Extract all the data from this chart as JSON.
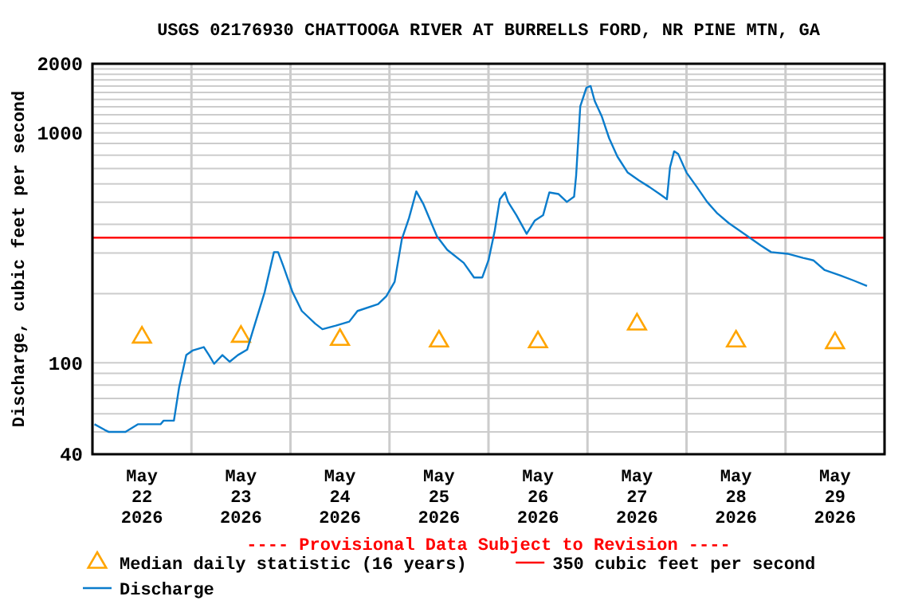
{
  "chart_data": {
    "type": "line",
    "title": "USGS 02176930 CHATTOOGA RIVER AT BURRELLS FORD, NR PINE MTN, GA",
    "ylabel": "Discharge, cubic feet per second",
    "annotations": [
      "---- Provisional Data Subject to Revision ----"
    ],
    "log": "y",
    "grid": true,
    "legend": "bottom",
    "xlim": [
      "2026-05-22T00:00",
      "2026-05-30T00:00"
    ],
    "xticks": [
      {
        "value": "2026-05-22T00:00",
        "label": null
      },
      {
        "value": "2026-05-22T12:00",
        "label": "May 22 2026"
      },
      {
        "value": "2026-05-23T00:00",
        "label": null
      },
      {
        "value": "2026-05-23T12:00",
        "label": "May 23 2026"
      },
      {
        "value": "2026-05-24T00:00",
        "label": null
      },
      {
        "value": "2026-05-24T12:00",
        "label": "May 24 2026"
      },
      {
        "value": "2026-05-25T00:00",
        "label": null
      },
      {
        "value": "2026-05-25T12:00",
        "label": "May 25 2026"
      },
      {
        "value": "2026-05-26T00:00",
        "label": null
      },
      {
        "value": "2026-05-26T12:00",
        "label": "May 26 2026"
      },
      {
        "value": "2026-05-27T00:00",
        "label": null
      },
      {
        "value": "2026-05-27T12:00",
        "label": "May 27 2026"
      },
      {
        "value": "2026-05-28T00:00",
        "label": null
      },
      {
        "value": "2026-05-28T12:00",
        "label": "May 28 2026"
      },
      {
        "value": "2026-05-29T00:00",
        "label": null
      },
      {
        "value": "2026-05-29T12:00",
        "label": "May 29 2026"
      },
      {
        "value": "2026-05-30T00:00",
        "label": null
      }
    ],
    "ylim": [
      40,
      2000
    ],
    "yticks": [
      40,
      {
        "value": 50,
        "label": null
      },
      {
        "value": 60,
        "label": null
      },
      {
        "value": 70,
        "label": null
      },
      {
        "value": 80,
        "label": null
      },
      {
        "value": 90,
        "label": null
      },
      100,
      {
        "value": 200,
        "label": null
      },
      {
        "value": 300,
        "label": null
      },
      {
        "value": 400,
        "label": null
      },
      {
        "value": 500,
        "label": null
      },
      {
        "value": 600,
        "label": null
      },
      {
        "value": 700,
        "label": null
      },
      {
        "value": 800,
        "label": null
      },
      {
        "value": 900,
        "label": null
      },
      1000,
      {
        "value": 1100,
        "label": null
      },
      {
        "value": 1200,
        "label": null
      },
      {
        "value": 1300,
        "label": null
      },
      {
        "value": 1400,
        "label": null
      },
      {
        "value": 1500,
        "label": null
      },
      {
        "value": 1600,
        "label": null
      },
      {
        "value": 1700,
        "label": null
      },
      {
        "value": 1800,
        "label": null
      },
      {
        "value": 1900,
        "label": null
      },
      2000
    ],
    "ref_lines": [
      {
        "axis": "y",
        "value": 350,
        "label": "350 cubic feet per second",
        "color": "#ff0000"
      }
    ],
    "series": [
      {
        "name": "Median daily statistic (16 years)",
        "type": "scatter",
        "marker": "triangle",
        "color": "#ffa500",
        "x": [
          "2026-05-22T12:00",
          "2026-05-23T12:00",
          "2026-05-24T12:00",
          "2026-05-25T12:00",
          "2026-05-26T12:00",
          "2026-05-27T12:00",
          "2026-05-28T12:00",
          "2026-05-29T12:00"
        ],
        "values": [
          129,
          130,
          126,
          124,
          123,
          147,
          124,
          122
        ]
      },
      {
        "name": "Discharge",
        "marker": "none",
        "color": "#0a7ccc",
        "x": [
          "2026-05-22T00:30",
          "2026-05-22T03:00",
          "2026-05-22T04:00",
          "2026-05-22T08:00",
          "2026-05-22T11:00",
          "2026-05-22T16:30",
          "2026-05-22T17:15",
          "2026-05-22T19:45",
          "2026-05-22T21:00",
          "2026-05-22T22:45",
          "2026-05-23T00:15",
          "2026-05-23T03:00",
          "2026-05-23T04:15",
          "2026-05-23T05:30",
          "2026-05-23T07:30",
          "2026-05-23T09:15",
          "2026-05-23T11:15",
          "2026-05-23T13:30",
          "2026-05-23T15:00",
          "2026-05-23T17:45",
          "2026-05-23T20:00",
          "2026-05-23T21:00",
          "2026-05-23T22:15",
          "2026-05-24T00:30",
          "2026-05-24T02:45",
          "2026-05-24T06:00",
          "2026-05-24T07:45",
          "2026-05-24T11:00",
          "2026-05-24T14:15",
          "2026-05-24T16:15",
          "2026-05-24T21:15",
          "2026-05-24T23:15",
          "2026-05-25T01:15",
          "2026-05-25T03:00",
          "2026-05-25T04:45",
          "2026-05-25T06:30",
          "2026-05-25T08:15",
          "2026-05-25T11:30",
          "2026-05-25T14:00",
          "2026-05-25T18:00",
          "2026-05-25T20:30",
          "2026-05-25T22:30",
          "2026-05-26T00:00",
          "2026-05-26T01:30",
          "2026-05-26T02:45",
          "2026-05-26T04:00",
          "2026-05-26T04:45",
          "2026-05-26T06:45",
          "2026-05-26T09:15",
          "2026-05-26T11:15",
          "2026-05-26T13:15",
          "2026-05-26T14:45",
          "2026-05-26T17:00",
          "2026-05-26T19:00",
          "2026-05-26T20:45",
          "2026-05-26T21:15",
          "2026-05-26T22:15",
          "2026-05-26T23:45",
          "2026-05-27T00:45",
          "2026-05-27T01:45",
          "2026-05-27T03:30",
          "2026-05-27T05:15",
          "2026-05-27T07:15",
          "2026-05-27T09:45",
          "2026-05-27T12:30",
          "2026-05-27T15:00",
          "2026-05-27T17:30",
          "2026-05-27T19:15",
          "2026-05-27T20:00",
          "2026-05-27T21:00",
          "2026-05-27T22:00",
          "2026-05-28T00:00",
          "2026-05-28T02:30",
          "2026-05-28T05:00",
          "2026-05-28T07:30",
          "2026-05-28T10:15",
          "2026-05-28T14:00",
          "2026-05-28T18:00",
          "2026-05-28T20:30",
          "2026-05-29T00:30",
          "2026-05-29T04:15",
          "2026-05-29T06:45",
          "2026-05-29T09:30",
          "2026-05-29T13:15",
          "2026-05-29T16:30",
          "2026-05-29T19:45"
        ],
        "values": [
          54,
          51,
          50,
          50,
          54,
          54,
          56,
          56,
          78,
          108,
          113,
          117,
          108,
          99,
          108,
          101,
          108,
          114,
          140,
          203,
          303,
          303,
          264,
          203,
          168,
          148,
          140,
          145,
          151,
          168,
          180,
          195,
          225,
          345,
          427,
          557,
          489,
          355,
          310,
          272,
          235,
          235,
          279,
          374,
          515,
          551,
          501,
          439,
          364,
          416,
          439,
          551,
          542,
          501,
          528,
          654,
          1306,
          1574,
          1600,
          1377,
          1175,
          948,
          789,
          672,
          621,
          582,
          542,
          515,
          708,
          832,
          809,
          672,
          582,
          501,
          446,
          405,
          364,
          324,
          303,
          298,
          286,
          279,
          253,
          240,
          228,
          216
        ]
      }
    ]
  }
}
